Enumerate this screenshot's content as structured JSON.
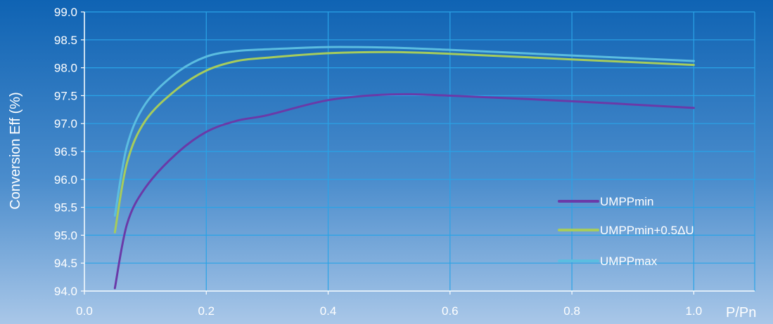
{
  "chart_data": {
    "type": "line",
    "title": "",
    "xlabel": "P/Pn",
    "ylabel": "Conversion Eff (%)",
    "xlim": [
      0.0,
      1.1
    ],
    "ylim": [
      94.0,
      99.0
    ],
    "x_ticks": [
      0.0,
      0.2,
      0.4,
      0.6,
      0.8,
      1.0
    ],
    "y_ticks": [
      94.0,
      94.5,
      95.0,
      95.5,
      96.0,
      96.5,
      97.0,
      97.5,
      98.0,
      98.5,
      99.0
    ],
    "x_tick_labels": [
      "0.0",
      "0.2",
      "0.4",
      "0.6",
      "0.8",
      "1.0"
    ],
    "y_tick_labels": [
      "94.0",
      "94.5",
      "95.0",
      "95.5",
      "96.0",
      "96.5",
      "97.0",
      "97.5",
      "98.0",
      "98.5",
      "99.0"
    ],
    "grid": true,
    "legend_position": "lower-right",
    "series": [
      {
        "name": "UMPPmin",
        "color": "#6a3aa8",
        "points": [
          [
            0.05,
            94.05
          ],
          [
            0.07,
            95.2
          ],
          [
            0.1,
            95.85
          ],
          [
            0.15,
            96.45
          ],
          [
            0.2,
            96.85
          ],
          [
            0.25,
            97.05
          ],
          [
            0.3,
            97.15
          ],
          [
            0.4,
            97.42
          ],
          [
            0.5,
            97.52
          ],
          [
            0.6,
            97.5
          ],
          [
            0.8,
            97.4
          ],
          [
            1.0,
            97.28
          ]
        ]
      },
      {
        "name": "UMPPmin+0.5ΔU",
        "color": "#a6cc5c",
        "points": [
          [
            0.05,
            95.05
          ],
          [
            0.07,
            96.3
          ],
          [
            0.1,
            97.05
          ],
          [
            0.15,
            97.6
          ],
          [
            0.2,
            97.95
          ],
          [
            0.25,
            98.12
          ],
          [
            0.3,
            98.18
          ],
          [
            0.4,
            98.26
          ],
          [
            0.5,
            98.28
          ],
          [
            0.6,
            98.25
          ],
          [
            0.8,
            98.15
          ],
          [
            1.0,
            98.05
          ]
        ]
      },
      {
        "name": "UMPPmax",
        "color": "#5bbde0",
        "points": [
          [
            0.05,
            95.35
          ],
          [
            0.07,
            96.6
          ],
          [
            0.1,
            97.35
          ],
          [
            0.15,
            97.9
          ],
          [
            0.2,
            98.2
          ],
          [
            0.25,
            98.3
          ],
          [
            0.3,
            98.33
          ],
          [
            0.4,
            98.37
          ],
          [
            0.5,
            98.36
          ],
          [
            0.6,
            98.32
          ],
          [
            0.8,
            98.22
          ],
          [
            1.0,
            98.12
          ]
        ]
      }
    ]
  }
}
